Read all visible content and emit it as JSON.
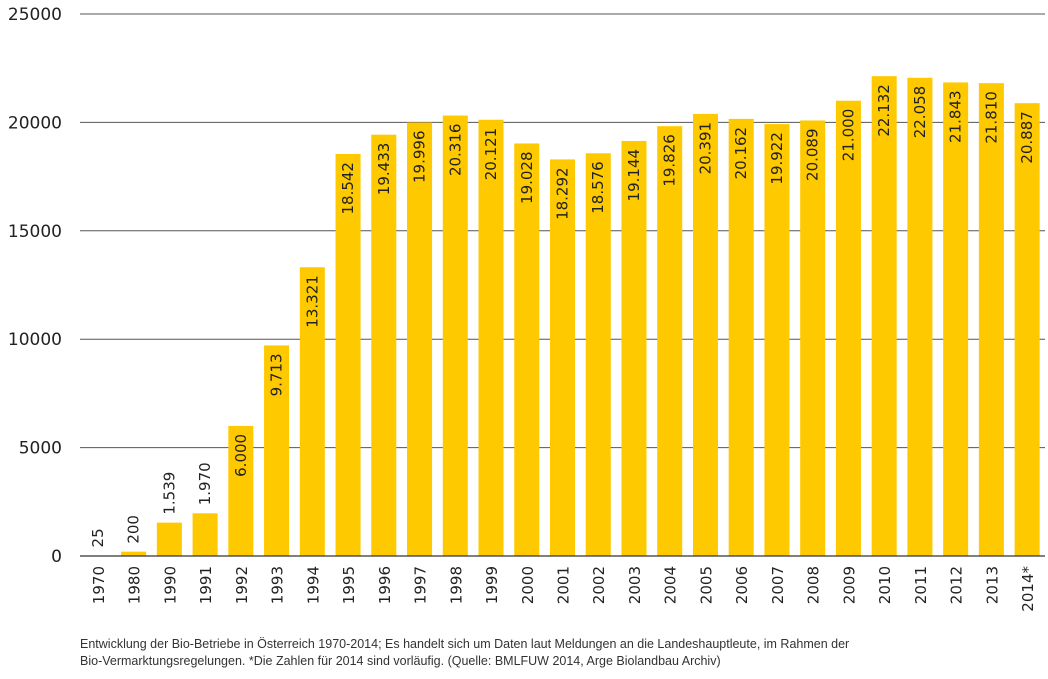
{
  "chart_data": {
    "type": "bar",
    "categories": [
      "1970",
      "1980",
      "1990",
      "1991",
      "1992",
      "1993",
      "1994",
      "1995",
      "1996",
      "1997",
      "1998",
      "1999",
      "2000",
      "2001",
      "2002",
      "2003",
      "2004",
      "2005",
      "2006",
      "2007",
      "2008",
      "2009",
      "2010",
      "2011",
      "2012",
      "2013",
      "2014*"
    ],
    "values": [
      25,
      200,
      1539,
      1970,
      6000,
      9713,
      13321,
      18542,
      19433,
      19996,
      20316,
      20121,
      19028,
      18292,
      18576,
      19144,
      19826,
      20391,
      20162,
      19922,
      20089,
      21000,
      22132,
      22058,
      21843,
      21810,
      20887
    ],
    "value_labels": [
      "25",
      "200",
      "1.539",
      "1.970",
      "6.000",
      "9.713",
      "13.321",
      "18.542",
      "19.433",
      "19.996",
      "20.316",
      "20.121",
      "19.028",
      "18.292",
      "18.576",
      "19.144",
      "19.826",
      "20.391",
      "20.162",
      "19.922",
      "20.089",
      "21.000",
      "22.132",
      "22.058",
      "21.843",
      "21.810",
      "20.887"
    ],
    "yticks": [
      "0",
      "5000",
      "10000",
      "15000",
      "20000",
      "25000"
    ],
    "ylim": [
      0,
      25000
    ],
    "grid": true,
    "bar_color": "#FFC900"
  },
  "caption": {
    "line1": "Entwicklung der Bio-Betriebe in Österreich 1970-2014; Es handelt sich um Daten laut Meldungen an die Landeshauptleute, im Rahmen der",
    "line2": "Bio-Vermarktungsregelungen. *Die Zahlen für 2014 sind vorläufig. (Quelle: BMLFUW 2014, Arge Biolandbau Archiv)"
  }
}
